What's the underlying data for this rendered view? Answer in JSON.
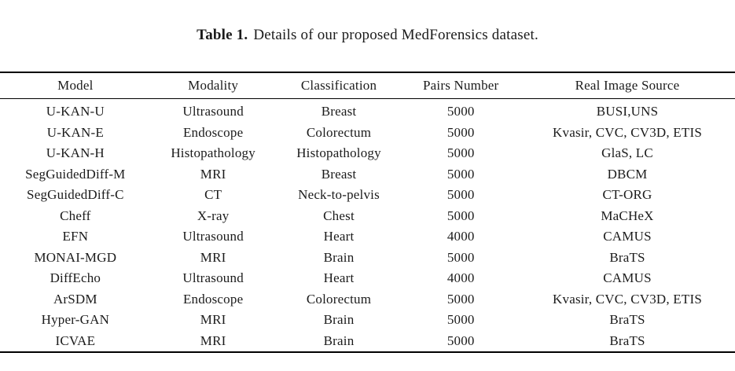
{
  "caption": {
    "label": "Table 1.",
    "text": "Details of our proposed MedForensics dataset."
  },
  "table": {
    "headers": [
      "Model",
      "Modality",
      "Classification",
      "Pairs Number",
      "Real Image Source"
    ],
    "rows": [
      [
        "U-KAN-U",
        "Ultrasound",
        "Breast",
        "5000",
        "BUSI,UNS"
      ],
      [
        "U-KAN-E",
        "Endoscope",
        "Colorectum",
        "5000",
        "Kvasir, CVC, CV3D, ETIS"
      ],
      [
        "U-KAN-H",
        "Histopathology",
        "Histopathology",
        "5000",
        "GlaS, LC"
      ],
      [
        "SegGuidedDiff-M",
        "MRI",
        "Breast",
        "5000",
        "DBCM"
      ],
      [
        "SegGuidedDiff-C",
        "CT",
        "Neck-to-pelvis",
        "5000",
        "CT-ORG"
      ],
      [
        "Cheff",
        "X-ray",
        "Chest",
        "5000",
        "MaCHeX"
      ],
      [
        "EFN",
        "Ultrasound",
        "Heart",
        "4000",
        "CAMUS"
      ],
      [
        "MONAI-MGD",
        "MRI",
        "Brain",
        "5000",
        "BraTS"
      ],
      [
        "DiffEcho",
        "Ultrasound",
        "Heart",
        "4000",
        "CAMUS"
      ],
      [
        "ArSDM",
        "Endoscope",
        "Colorectum",
        "5000",
        "Kvasir, CVC, CV3D, ETIS"
      ],
      [
        "Hyper-GAN",
        "MRI",
        "Brain",
        "5000",
        "BraTS"
      ],
      [
        "ICVAE",
        "MRI",
        "Brain",
        "5000",
        "BraTS"
      ]
    ]
  },
  "colors": {
    "text": "#1b1b1b",
    "rule": "#000000",
    "background": "#ffffff"
  }
}
